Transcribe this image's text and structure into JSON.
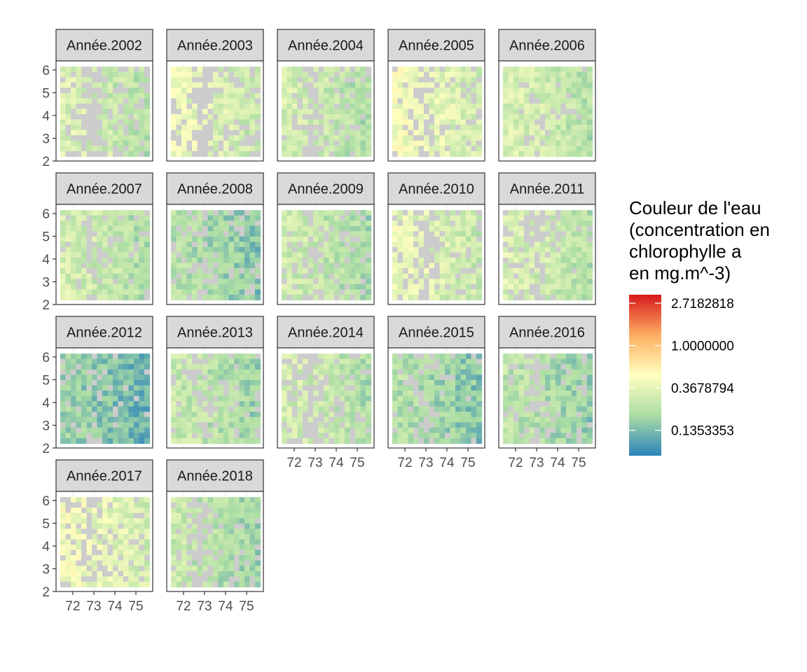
{
  "chart_data": {
    "type": "heatmap",
    "facet_var": "Année",
    "panels": [
      "Année.2002",
      "Année.2003",
      "Année.2004",
      "Année.2005",
      "Année.2006",
      "Année.2007",
      "Année.2008",
      "Année.2009",
      "Année.2010",
      "Année.2011",
      "Année.2012",
      "Année.2013",
      "Année.2014",
      "Année.2015",
      "Année.2016",
      "Année.2017",
      "Année.2018"
    ],
    "panel_mean_chlorophyll": [
      0.3,
      0.36,
      0.28,
      0.4,
      0.3,
      0.28,
      0.2,
      0.26,
      0.36,
      0.3,
      0.16,
      0.24,
      0.28,
      0.2,
      0.22,
      0.4,
      0.24
    ],
    "panel_missing_fraction": [
      0.38,
      0.42,
      0.3,
      0.3,
      0.1,
      0.22,
      0.22,
      0.24,
      0.3,
      0.28,
      0.12,
      0.3,
      0.34,
      0.22,
      0.3,
      0.3,
      0.3
    ],
    "x_ticks": [
      "72",
      "73",
      "74",
      "75"
    ],
    "y_ticks": [
      "2",
      "3",
      "4",
      "5",
      "6"
    ],
    "xlim": [
      71.2,
      75.8
    ],
    "ylim": [
      2,
      6.4
    ],
    "na_color": "#cccccc",
    "legend": {
      "title_lines": [
        "Couleur de l'eau",
        "(concentration en",
        "chlorophylle a",
        "en mg.m^-3)"
      ],
      "breaks": [
        "2.7182818",
        "1.0000000",
        "0.3678794",
        "0.1353353"
      ],
      "break_values": [
        1,
        0,
        -1,
        -2
      ],
      "log_range": [
        -2.6,
        1.2
      ],
      "colors": [
        "#2b83ba",
        "#abdda4",
        "#ffffbf",
        "#fdae61",
        "#d7191c"
      ],
      "position": "right"
    },
    "grid": true
  }
}
